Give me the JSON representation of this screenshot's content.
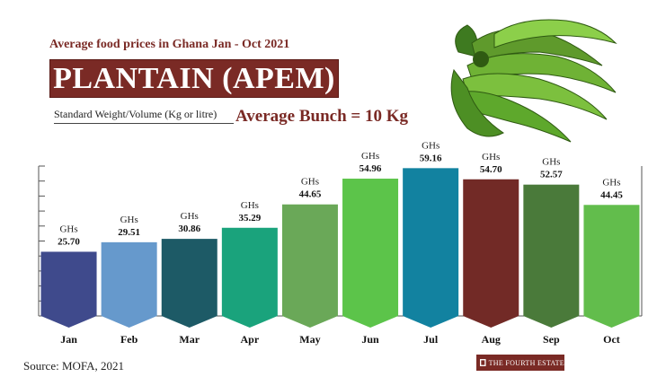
{
  "header": {
    "subtitle": "Average food prices in Ghana Jan - Oct 2021",
    "title": "PLANTAIN (APEM)",
    "standard": "Standard Weight/Volume (Kg or litre)",
    "average": "Average Bunch = 10 Kg"
  },
  "footer": {
    "source": "Source: MOFA, 2021",
    "brand": "THE FOURTH ESTATE"
  },
  "colors": {
    "accent": "#7a2a25"
  },
  "chart_data": {
    "type": "bar",
    "title": "PLANTAIN (APEM)",
    "currency_label": "GHs",
    "categories": [
      "Jan",
      "Feb",
      "Mar",
      "Apr",
      "May",
      "Jun",
      "Jul",
      "Aug",
      "Sep",
      "Oct"
    ],
    "values": [
      25.7,
      29.51,
      30.86,
      35.29,
      44.65,
      54.96,
      59.16,
      54.7,
      52.57,
      44.45
    ],
    "value_labels": [
      "25.70",
      "29.51",
      "30.86",
      "35.29",
      "44.65",
      "54.96",
      "59.16",
      "54.70",
      "52.57",
      "44.45"
    ],
    "colors": [
      "#3f4a8c",
      "#6699cc",
      "#1d5a66",
      "#1aa37c",
      "#6aa858",
      "#5cc44a",
      "#1282a0",
      "#722a26",
      "#4a7a3a",
      "#62bd4c"
    ],
    "ylim": [
      0,
      60
    ],
    "grid": false,
    "legend": "none"
  }
}
